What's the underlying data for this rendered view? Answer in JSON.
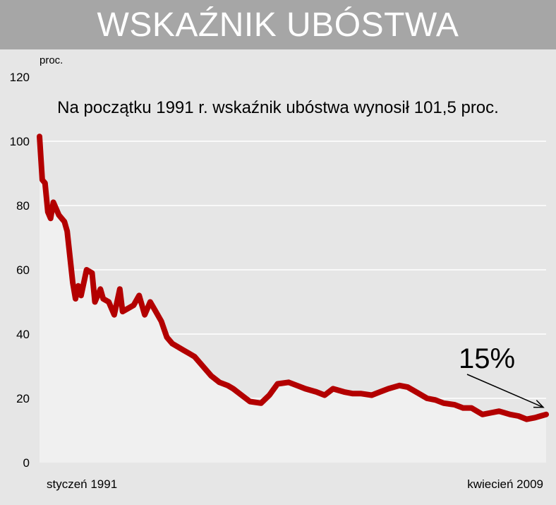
{
  "header": {
    "title": "WSKAŹNIK UBÓSTWA"
  },
  "chart_data": {
    "type": "area",
    "title": "WSKAŹNIK UBÓSTWA",
    "subtitle": "Na początku 1991 r. wskaźnik ubóstwa wynosił 101,5 proc.",
    "ylabel": "proc.",
    "xlabel": "",
    "ylim": [
      0,
      120
    ],
    "yticks": [
      0,
      20,
      40,
      60,
      80,
      100,
      120
    ],
    "x_start_label": "styczeń 1991",
    "x_end_label": "kwiecień 2009",
    "grid": true,
    "annotation": {
      "text": "15%",
      "points_to": "last value"
    },
    "series_color": "#b30000",
    "area_color": "#f0f0f0",
    "x": [
      1991.0,
      1991.1,
      1991.2,
      1991.3,
      1991.4,
      1991.5,
      1991.7,
      1991.9,
      1992.0,
      1992.2,
      1992.3,
      1992.4,
      1992.5,
      1992.7,
      1992.9,
      1993.0,
      1993.2,
      1993.3,
      1993.5,
      1993.7,
      1993.9,
      1994.0,
      1994.2,
      1994.4,
      1994.6,
      1994.8,
      1995.0,
      1995.2,
      1995.4,
      1995.6,
      1995.8,
      1996.0,
      1996.2,
      1996.4,
      1996.6,
      1996.8,
      1997.0,
      1997.2,
      1997.5,
      1997.8,
      1998.0,
      1998.3,
      1998.6,
      1999.0,
      1999.3,
      1999.6,
      2000.0,
      2000.3,
      2000.6,
      2001.0,
      2001.3,
      2001.6,
      2002.0,
      2002.3,
      2002.6,
      2003.0,
      2003.3,
      2003.6,
      2004.0,
      2004.3,
      2004.6,
      2005.0,
      2005.3,
      2005.6,
      2006.0,
      2006.3,
      2006.6,
      2007.0,
      2007.3,
      2007.6,
      2008.0,
      2008.3,
      2008.6,
      2008.9,
      2009.1,
      2009.3
    ],
    "values": [
      101.5,
      88,
      87,
      78,
      76,
      81,
      77,
      75,
      72,
      56,
      51,
      55,
      52,
      60,
      59,
      50,
      54,
      51,
      50,
      46,
      54,
      47,
      48,
      49,
      52,
      46,
      50,
      47,
      44,
      39,
      37,
      36,
      35,
      34,
      33,
      31,
      29,
      27,
      25,
      24,
      23,
      21,
      19,
      18.5,
      21,
      24.5,
      25,
      24,
      23,
      22,
      21,
      23,
      22,
      21.5,
      21.5,
      21,
      22,
      23,
      24,
      23.5,
      22,
      20,
      19.5,
      18.5,
      18,
      17,
      17,
      15,
      15.5,
      16,
      15,
      14.5,
      13.5,
      14,
      14.5,
      15
    ]
  }
}
